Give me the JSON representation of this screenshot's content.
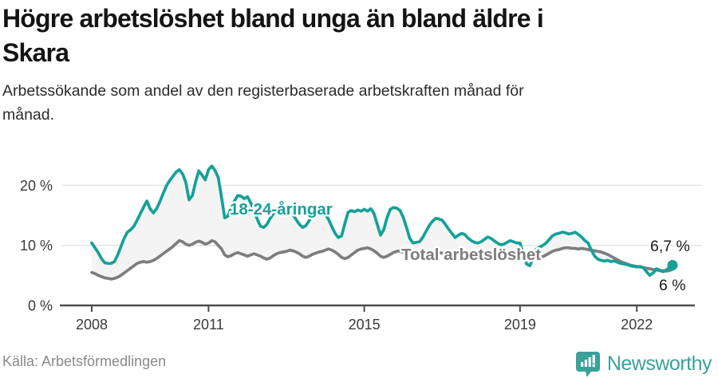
{
  "header": {
    "title": "Högre arbetslöshet bland unga än bland äldre i Skara",
    "title_lines": [
      "Högre arbetslöshet bland unga än bland äldre i",
      "Skara"
    ],
    "subtitle": "Arbetssökande som andel av den registerbaserade arbetskraften månad för månad.",
    "subtitle_lines": [
      "Arbetssökande som andel av den registerbaserade arbetskraften månad för",
      "månad."
    ]
  },
  "colors": {
    "youth": "#14a198",
    "total": "#7d7d7d",
    "band": "#f4f4f4",
    "grid": "#e3e3e3",
    "axis": "#4d4d4d",
    "brand": "#3ba19b"
  },
  "chart_data": {
    "type": "line",
    "title": "Högre arbetslöshet bland unga än bland äldre i Skara",
    "subtitle": "Arbetssökande som andel av den registerbaserade arbetskraften månad för månad.",
    "x_unit": "month",
    "x_range": [
      "2008-01",
      "2022-12"
    ],
    "start_year": 2008,
    "ylim": [
      0,
      25
    ],
    "grid": "horizontal",
    "legend": "inline-labels",
    "y_ticks": [
      {
        "value": 0,
        "label": "0 %"
      },
      {
        "value": 10,
        "label": "10 %"
      },
      {
        "value": 20,
        "label": "20 %"
      }
    ],
    "x_ticks": [
      {
        "year": 2008,
        "label": "2008"
      },
      {
        "year": 2011,
        "label": "2011"
      },
      {
        "year": 2015,
        "label": "2015"
      },
      {
        "year": 2019,
        "label": "2019"
      },
      {
        "year": 2022,
        "label": "2022"
      }
    ],
    "series": [
      {
        "name": "18-24-åringar",
        "color": "#14a198",
        "end_label": "6,7 %",
        "end_value": 6.7,
        "values": [
          10.4,
          9.6,
          8.8,
          7.8,
          7.1,
          7.0,
          7.0,
          7.3,
          8.4,
          9.8,
          11.2,
          12.2,
          12.6,
          13.2,
          14.2,
          15.3,
          16.4,
          17.4,
          16.1,
          15.4,
          16.1,
          17.3,
          18.6,
          19.9,
          20.8,
          21.5,
          22.2,
          22.6,
          21.9,
          20.5,
          17.6,
          18.3,
          20.5,
          22.4,
          21.7,
          20.9,
          22.6,
          23.2,
          22.5,
          21.3,
          18.0,
          14.6,
          14.9,
          16.3,
          17.4,
          18.3,
          18.2,
          17.8,
          18.1,
          17.1,
          15.8,
          14.4,
          13.2,
          13.0,
          13.5,
          14.5,
          15.3,
          15.7,
          15.6,
          15.4,
          15.5,
          15.7,
          15.1,
          14.3,
          13.5,
          13.0,
          13.3,
          14.1,
          15.0,
          15.6,
          15.8,
          15.6,
          15.2,
          14.3,
          13.1,
          12.0,
          11.3,
          11.6,
          13.6,
          15.5,
          15.8,
          15.6,
          15.9,
          15.7,
          16.0,
          15.7,
          16.1,
          15.3,
          13.5,
          11.7,
          12.6,
          14.6,
          16.0,
          16.3,
          16.2,
          15.8,
          14.7,
          13.0,
          11.2,
          10.4,
          10.5,
          10.6,
          11.3,
          12.3,
          13.3,
          14.0,
          14.5,
          14.4,
          14.2,
          13.5,
          12.7,
          12.0,
          11.3,
          11.7,
          12.0,
          11.8,
          11.2,
          10.8,
          10.5,
          10.4,
          10.6,
          11.0,
          11.4,
          11.2,
          10.8,
          10.4,
          10.1,
          10.2,
          10.5,
          10.8,
          10.6,
          10.4,
          10.4,
          8.6,
          6.9,
          6.6,
          7.8,
          9.4,
          9.7,
          10.0,
          10.4,
          11.0,
          11.6,
          11.9,
          12.0,
          12.2,
          12.1,
          11.9,
          12.0,
          12.2,
          11.8,
          11.4,
          10.8,
          10.4,
          9.2,
          8.2,
          7.7,
          7.5,
          7.4,
          7.5,
          7.3,
          7.4,
          7.2,
          7.0,
          6.9,
          6.8,
          6.6,
          6.5,
          6.4,
          6.5,
          6.3,
          5.6,
          5.0,
          5.4,
          6.1,
          5.9,
          5.6,
          5.9,
          6.3,
          6.7
        ]
      },
      {
        "name": "Total arbetslöshet",
        "color": "#7d7d7d",
        "end_label": "6 %",
        "end_value": 6.0,
        "values": [
          5.5,
          5.3,
          5.0,
          4.8,
          4.6,
          4.5,
          4.4,
          4.5,
          4.7,
          5.0,
          5.4,
          5.8,
          6.2,
          6.6,
          7.0,
          7.2,
          7.3,
          7.2,
          7.3,
          7.5,
          7.8,
          8.2,
          8.6,
          9.0,
          9.4,
          9.8,
          10.3,
          10.8,
          10.6,
          10.2,
          10.0,
          10.2,
          10.5,
          10.7,
          10.5,
          10.2,
          10.4,
          10.8,
          10.6,
          10.0,
          9.4,
          8.4,
          8.1,
          8.3,
          8.6,
          8.8,
          8.6,
          8.4,
          8.2,
          8.4,
          8.6,
          8.4,
          8.2,
          7.9,
          7.7,
          7.9,
          8.3,
          8.6,
          8.8,
          8.9,
          9.0,
          9.2,
          9.1,
          8.9,
          8.6,
          8.2,
          8.0,
          8.2,
          8.5,
          8.7,
          8.9,
          9.0,
          9.2,
          9.4,
          9.2,
          8.9,
          8.5,
          8.0,
          7.8,
          8.0,
          8.4,
          8.8,
          9.2,
          9.4,
          9.5,
          9.6,
          9.4,
          9.1,
          8.7,
          8.2,
          8.0,
          8.2,
          8.5,
          8.8,
          9.0,
          9.1,
          8.8,
          9.0,
          9.2,
          9.0,
          8.8,
          8.6,
          8.5,
          8.7,
          8.9,
          9.0,
          8.9,
          8.8,
          8.7,
          8.8,
          8.9,
          8.8,
          8.6,
          8.4,
          8.3,
          8.5,
          8.7,
          8.8,
          8.7,
          8.6,
          8.5,
          8.6,
          8.5,
          8.3,
          8.1,
          7.9,
          7.8,
          8.0,
          8.2,
          8.3,
          8.3,
          8.2,
          8.2,
          8.3,
          8.2,
          8.0,
          7.9,
          7.8,
          7.9,
          8.1,
          8.4,
          8.7,
          9.0,
          9.2,
          9.3,
          9.5,
          9.6,
          9.6,
          9.5,
          9.5,
          9.4,
          9.5,
          9.4,
          9.3,
          9.2,
          9.1,
          9.0,
          8.9,
          8.7,
          8.5,
          8.2,
          7.9,
          7.6,
          7.3,
          7.1,
          6.9,
          6.7,
          6.6,
          6.5,
          6.4,
          6.3,
          6.2,
          6.1,
          6.0,
          5.9,
          5.8,
          5.8,
          5.7,
          5.8,
          6.0
        ]
      }
    ]
  },
  "footer": {
    "source": "Källa: Arbetsförmedlingen",
    "brand": "Newsworthy"
  }
}
